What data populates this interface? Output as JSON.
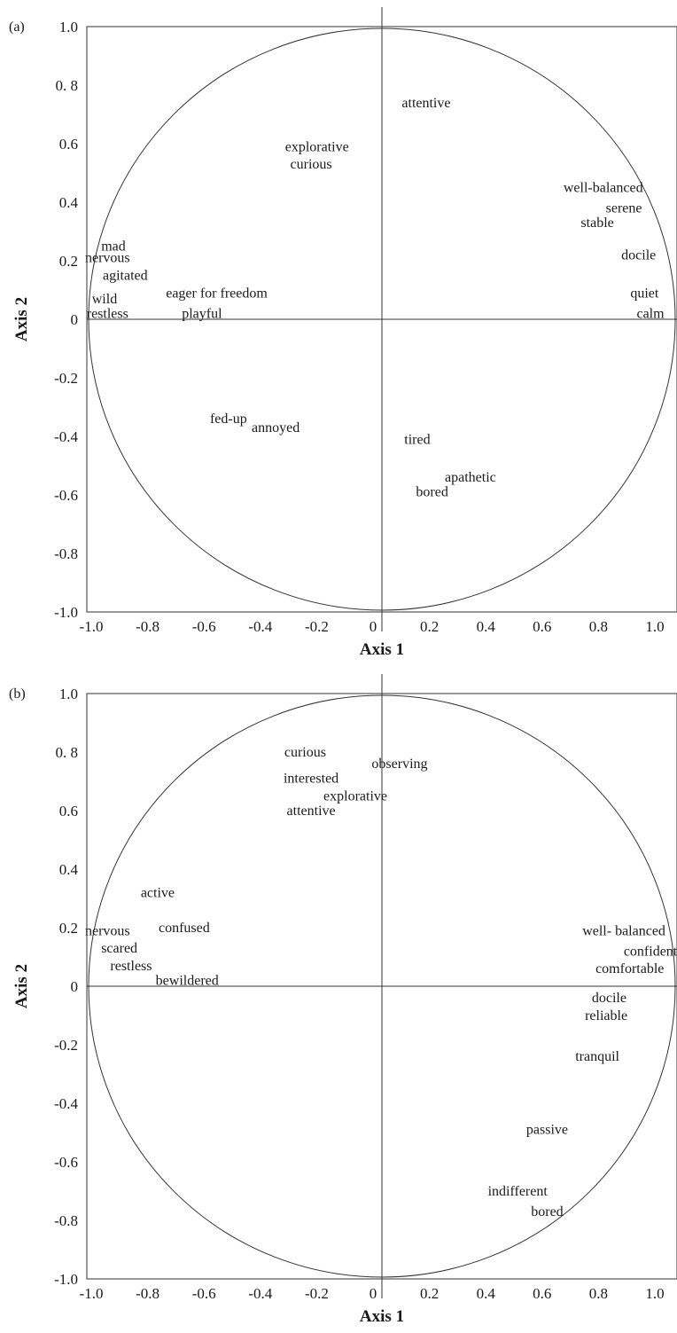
{
  "chart_data": [
    {
      "type": "scatter",
      "panel_label": "(a)",
      "xlabel": "Axis 1",
      "ylabel": "Axis 2",
      "xlim": [
        -1.0,
        1.0
      ],
      "ylim": [
        -1.0,
        1.0
      ],
      "x_ticks": [
        "-1.0",
        "-0.8",
        "-0.6",
        "-0.4",
        "-0.2",
        "0",
        "0.2",
        "0.4",
        "0.6",
        "0.8",
        "1.0"
      ],
      "y_ticks": [
        "1.0",
        "0. 8",
        "0.6",
        "0.4",
        "0.2",
        "0",
        "-0.2",
        "-0.4",
        "-0.6",
        "-0.8",
        "-1.0"
      ],
      "correlation_circle": true,
      "terms": [
        {
          "label": "attentive",
          "x": 0.15,
          "y": 0.74
        },
        {
          "label": "explorative",
          "x": -0.22,
          "y": 0.59
        },
        {
          "label": "curious",
          "x": -0.24,
          "y": 0.53
        },
        {
          "label": "well-balanced",
          "x": 0.75,
          "y": 0.45
        },
        {
          "label": "serene",
          "x": 0.82,
          "y": 0.38
        },
        {
          "label": "stable",
          "x": 0.73,
          "y": 0.33
        },
        {
          "label": "docile",
          "x": 0.87,
          "y": 0.22
        },
        {
          "label": "quiet",
          "x": 0.89,
          "y": 0.09
        },
        {
          "label": "calm",
          "x": 0.91,
          "y": 0.02
        },
        {
          "label": "mad",
          "x": -0.91,
          "y": 0.25
        },
        {
          "label": "nervous",
          "x": -0.93,
          "y": 0.21
        },
        {
          "label": "agitated",
          "x": -0.87,
          "y": 0.15
        },
        {
          "label": "eager for freedom",
          "x": -0.56,
          "y": 0.09
        },
        {
          "label": "wild",
          "x": -0.94,
          "y": 0.07
        },
        {
          "label": "restless",
          "x": -0.93,
          "y": 0.02
        },
        {
          "label": "playful",
          "x": -0.61,
          "y": 0.02
        },
        {
          "label": "fed-up",
          "x": -0.52,
          "y": -0.34
        },
        {
          "label": "annoyed",
          "x": -0.36,
          "y": -0.37
        },
        {
          "label": "tired",
          "x": 0.12,
          "y": -0.41
        },
        {
          "label": "apathetic",
          "x": 0.3,
          "y": -0.54
        },
        {
          "label": "bored",
          "x": 0.17,
          "y": -0.59
        }
      ]
    },
    {
      "type": "scatter",
      "panel_label": "(b)",
      "xlabel": "Axis 1",
      "ylabel": "Axis 2",
      "xlim": [
        -1.0,
        1.0
      ],
      "ylim": [
        -1.0,
        1.0
      ],
      "x_ticks": [
        "-1.0",
        "-0.8",
        "-0.6",
        "-0.4",
        "-0.2",
        "0",
        "0.2",
        "0.4",
        "0.6",
        "0.8",
        "1.0"
      ],
      "y_ticks": [
        "1.0",
        "0. 8",
        "0.6",
        "0.4",
        "0.2",
        "0",
        "-0.2",
        "-0.4",
        "-0.6",
        "-0.8",
        "-1.0"
      ],
      "correlation_circle": true,
      "terms": [
        {
          "label": "curious",
          "x": -0.26,
          "y": 0.8
        },
        {
          "label": "observing",
          "x": 0.06,
          "y": 0.76
        },
        {
          "label": "interested",
          "x": -0.24,
          "y": 0.71
        },
        {
          "label": "explorative",
          "x": -0.09,
          "y": 0.65
        },
        {
          "label": "attentive",
          "x": -0.24,
          "y": 0.6
        },
        {
          "label": "active",
          "x": -0.76,
          "y": 0.32
        },
        {
          "label": "confused",
          "x": -0.67,
          "y": 0.2
        },
        {
          "label": "nervous",
          "x": -0.93,
          "y": 0.19
        },
        {
          "label": "scared",
          "x": -0.89,
          "y": 0.13
        },
        {
          "label": "restless",
          "x": -0.85,
          "y": 0.07
        },
        {
          "label": "bewildered",
          "x": -0.66,
          "y": 0.02
        },
        {
          "label": "well- balanced",
          "x": 0.82,
          "y": 0.19
        },
        {
          "label": "confident",
          "x": 0.91,
          "y": 0.12
        },
        {
          "label": "comfortable",
          "x": 0.84,
          "y": 0.06
        },
        {
          "label": "docile",
          "x": 0.77,
          "y": -0.04
        },
        {
          "label": "reliable",
          "x": 0.76,
          "y": -0.1
        },
        {
          "label": "tranquil",
          "x": 0.73,
          "y": -0.24
        },
        {
          "label": "passive",
          "x": 0.56,
          "y": -0.49
        },
        {
          "label": "indifferent",
          "x": 0.46,
          "y": -0.7
        },
        {
          "label": "bored",
          "x": 0.56,
          "y": -0.77
        }
      ]
    }
  ]
}
